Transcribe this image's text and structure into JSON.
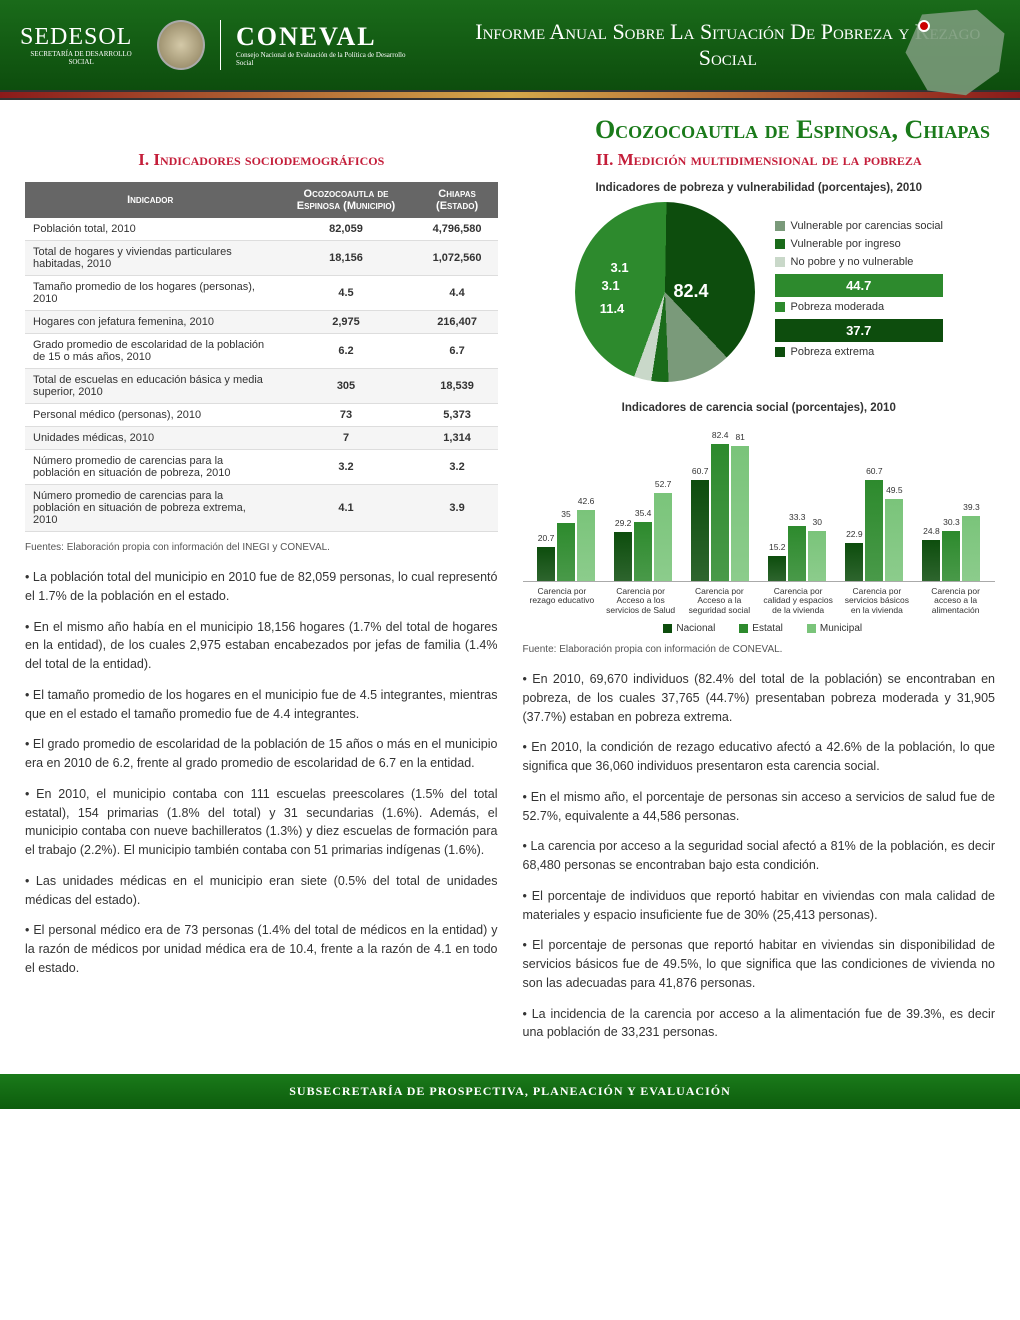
{
  "header": {
    "org1": "SEDESOL",
    "org1_sub": "SECRETARÍA DE\nDESARROLLO SOCIAL",
    "org2": "CONEVAL",
    "org2_sub": "Consejo Nacional de Evaluación\nde la Política de Desarrollo Social",
    "title": "Informe Anual Sobre La Situación\nDe Pobreza y Rezago Social"
  },
  "municipality": "Ocozocoautla de Espinosa, Chiapas",
  "section1_title": "I. Indicadores sociodemográficos",
  "section2_title": "II. Medición multidimensional de la pobreza",
  "table": {
    "headers": [
      "Indicador",
      "Ocozocoautla de Espinosa (Municipio)",
      "Chiapas (Estado)"
    ],
    "rows": [
      [
        "Población total, 2010",
        "82,059",
        "4,796,580"
      ],
      [
        "Total de hogares y viviendas particulares habitadas, 2010",
        "18,156",
        "1,072,560"
      ],
      [
        "Tamaño promedio de los hogares (personas), 2010",
        "4.5",
        "4.4"
      ],
      [
        "Hogares con jefatura femenina, 2010",
        "2,975",
        "216,407"
      ],
      [
        "Grado promedio de escolaridad de la población de 15 o más años, 2010",
        "6.2",
        "6.7"
      ],
      [
        "Total de escuelas en educación básica y media superior, 2010",
        "305",
        "18,539"
      ],
      [
        "Personal médico (personas), 2010",
        "73",
        "5,373"
      ],
      [
        "Unidades médicas, 2010",
        "7",
        "1,314"
      ],
      [
        "Número promedio de carencias para la población en situación de pobreza, 2010",
        "3.2",
        "3.2"
      ],
      [
        "Número promedio de carencias para la población en situación de pobreza extrema, 2010",
        "4.1",
        "3.9"
      ]
    ]
  },
  "sources_left": "Fuentes: Elaboración propia con información del INEGI y CONEVAL.",
  "left_paragraphs": [
    "• La población total del municipio en 2010 fue de 82,059 personas, lo cual representó el 1.7% de la población en el estado.",
    "• En el mismo año había en el municipio 18,156 hogares (1.7% del total de hogares en la entidad), de los cuales 2,975 estaban encabezados por jefas de familia (1.4% del total de la entidad).",
    "• El tamaño promedio de los hogares en el municipio fue de 4.5 integrantes, mientras que en el estado el tamaño promedio fue de 4.4 integrantes.",
    "• El grado promedio de escolaridad de la población de 15 años o más en el municipio era en 2010 de 6.2, frente al grado promedio de escolaridad de 6.7 en la entidad.",
    "• En 2010, el municipio contaba con 111 escuelas preescolares (1.5% del total estatal), 154 primarias (1.8% del total) y 31 secundarias (1.6%). Además, el municipio contaba con nueve bachilleratos (1.3%) y diez escuelas de formación para el trabajo (2.2%). El municipio también contaba con 51 primarias indígenas (1.6%).",
    "• Las unidades médicas en el municipio eran siete (0.5% del total de unidades médicas del estado).",
    "• El personal médico era de 73 personas (1.4% del total de médicos en la entidad) y la razón de médicos por unidad médica era de 10.4, frente a la razón de 4.1 en todo el estado."
  ],
  "pie_chart": {
    "title": "Indicadores de pobreza y vulnerabilidad (porcentajes), 2010",
    "total_label": "82.4",
    "slices": [
      {
        "label": "Vulnerable por carencias social",
        "value": 11.4,
        "color": "#7a9a7a"
      },
      {
        "label": "Vulnerable por ingreso",
        "value": 3.1,
        "color": "#1a6b1a"
      },
      {
        "label": "No pobre y no vulnerable",
        "value": 3.1,
        "color": "#c9d8c9"
      },
      {
        "label": "Pobreza moderada",
        "value": 44.7,
        "color": "#2d8a2d"
      },
      {
        "label": "Pobreza extrema",
        "value": 37.7,
        "color": "#0d4d0d"
      }
    ],
    "legend_values": [
      "44.7",
      "37.7"
    ],
    "inner_labels": [
      "3.1",
      "3.1",
      "11.4"
    ]
  },
  "bar_chart": {
    "title": "Indicadores de carencia social (porcentajes), 2010",
    "colors": {
      "nacional": "#0d4d0d",
      "estatal": "#2d8a2d",
      "municipal": "#7ac47a"
    },
    "ymax": 90,
    "categories": [
      {
        "label": "Carencia por rezago educativo",
        "values": [
          20.7,
          35,
          42.6
        ]
      },
      {
        "label": "Carencia por Acceso a los servicios de Salud",
        "values": [
          29.2,
          35.4,
          52.7
        ]
      },
      {
        "label": "Carencia por Acceso a la seguridad social",
        "values": [
          60.7,
          82.4,
          81
        ]
      },
      {
        "label": "Carencia por calidad y espacios de la vivienda",
        "values": [
          15.2,
          33.3,
          30
        ]
      },
      {
        "label": "Carencia por servicios básicos en la vivienda",
        "values": [
          22.9,
          60.7,
          49.5
        ]
      },
      {
        "label": "Carencia por acceso a la alimentación",
        "values": [
          24.8,
          30.3,
          39.3
        ]
      }
    ],
    "legend": [
      "Nacional",
      "Estatal",
      "Municipal"
    ]
  },
  "sources_right": "Fuente: Elaboración propia con información de CONEVAL.",
  "right_paragraphs": [
    "• En 2010, 69,670 individuos (82.4% del total de la población) se encontraban en pobreza, de los cuales 37,765 (44.7%) presentaban pobreza moderada y 31,905 (37.7%) estaban en pobreza extrema.",
    "• En 2010, la condición de rezago educativo afectó a 42.6% de la población, lo que significa que 36,060 individuos presentaron esta carencia social.",
    "• En el mismo año, el porcentaje de personas sin acceso a servicios de salud fue de 52.7%, equivalente a 44,586 personas.",
    "• La carencia por acceso a la seguridad social afectó a 81% de la población, es decir 68,480 personas se encontraban bajo esta condición.",
    "• El porcentaje de individuos  que reportó habitar en viviendas con mala calidad de materiales y espacio insuficiente fue de 30% (25,413 personas).",
    "• El porcentaje de personas que reportó habitar en viviendas sin disponibilidad de servicios básicos fue de 49.5%, lo que significa que las condiciones de vivienda no son las adecuadas para 41,876 personas.",
    "• La incidencia de la carencia por acceso a la alimentación fue de 39.3%, es decir una población de 33,231 personas."
  ],
  "footer": "SUBSECRETARÍA DE PROSPECTIVA, PLANEACIÓN Y EVALUACIÓN"
}
